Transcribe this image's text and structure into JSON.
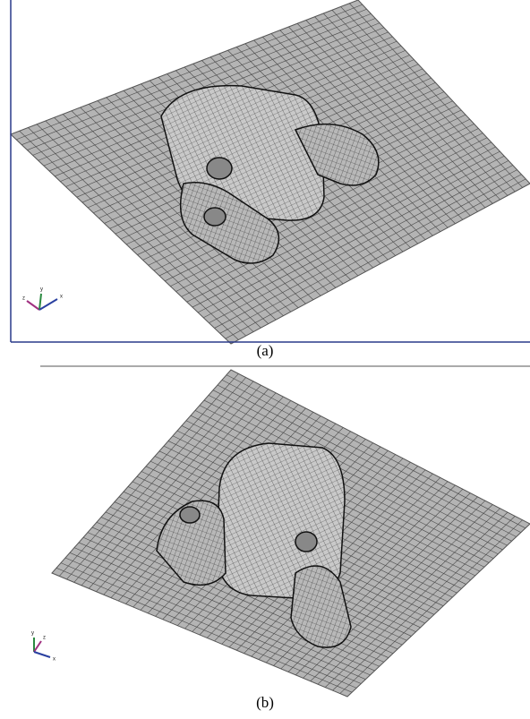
{
  "figure": {
    "panels": [
      {
        "caption": "(a)",
        "triad": [
          "z",
          "y",
          "x"
        ]
      },
      {
        "caption": "(b)",
        "triad": [
          "y",
          "z",
          "x"
        ]
      }
    ]
  }
}
